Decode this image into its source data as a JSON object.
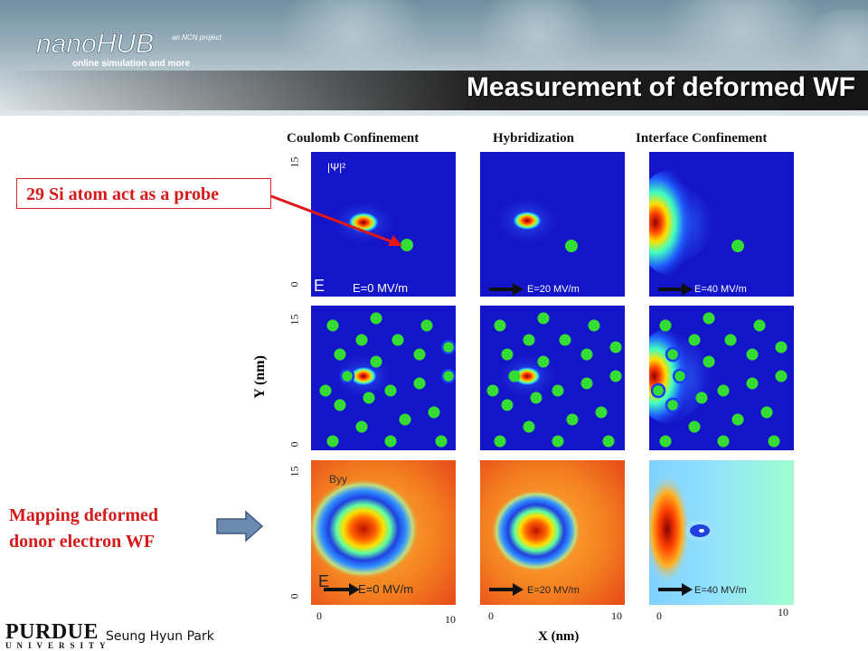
{
  "header": {
    "logo_text": "nanoHUB",
    "logo_sub": "online simulation and more",
    "logo_partner": "an NCN project",
    "title": "Measurement of deformed WF"
  },
  "columns": [
    {
      "title": "Coulomb Confinement",
      "field": "E=0 MV/m"
    },
    {
      "title": "Hybridization",
      "field": "E=20 MV/m"
    },
    {
      "title": "Interface Confinement",
      "field": "E=40 MV/m"
    }
  ],
  "panel_labels": {
    "psi": "|Ψ|²",
    "byy": "Byy",
    "e_symbol": "E"
  },
  "axes": {
    "ylabel": "Y (nm)",
    "xlabel": "X (nm)",
    "y_ticks": [
      "15",
      "0"
    ],
    "x_ticks": [
      "0",
      "10"
    ]
  },
  "callouts": {
    "probe": "29 Si atom act as a probe",
    "mapping_line1": "Mapping deformed",
    "mapping_line2": "donor electron WF"
  },
  "footer": {
    "university": "PURDUE",
    "university_sub": "UNIVERSITY",
    "author": "Seung Hyun Park"
  },
  "colors": {
    "title_text": "#ffffff",
    "callout_red": "#d41a1a",
    "dot_green": "#33dd33",
    "dot_ring": "#1a3cff",
    "map_blue": "#1414c8"
  }
}
